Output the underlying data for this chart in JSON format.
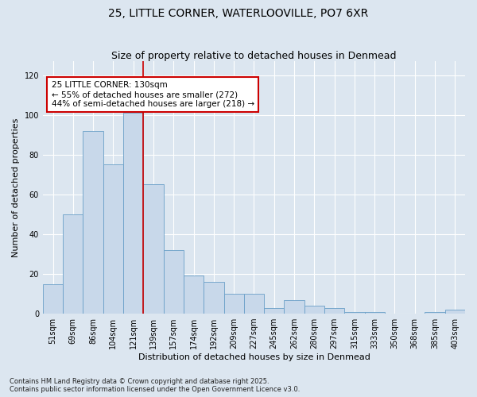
{
  "title": "25, LITTLE CORNER, WATERLOOVILLE, PO7 6XR",
  "subtitle": "Size of property relative to detached houses in Denmead",
  "xlabel": "Distribution of detached houses by size in Denmead",
  "ylabel": "Number of detached properties",
  "footer_line1": "Contains HM Land Registry data © Crown copyright and database right 2025.",
  "footer_line2": "Contains public sector information licensed under the Open Government Licence v3.0.",
  "categories": [
    "51sqm",
    "69sqm",
    "86sqm",
    "104sqm",
    "121sqm",
    "139sqm",
    "157sqm",
    "174sqm",
    "192sqm",
    "209sqm",
    "227sqm",
    "245sqm",
    "262sqm",
    "280sqm",
    "297sqm",
    "315sqm",
    "333sqm",
    "350sqm",
    "368sqm",
    "385sqm",
    "403sqm"
  ],
  "values": [
    15,
    50,
    92,
    75,
    101,
    65,
    32,
    19,
    16,
    10,
    10,
    3,
    7,
    4,
    3,
    1,
    1,
    0,
    0,
    1,
    2
  ],
  "bar_color": "#c8d8ea",
  "bar_edge_color": "#6a9fc8",
  "vline_x_index": 4.5,
  "vline_color": "#cc0000",
  "annotation_text": "25 LITTLE CORNER: 130sqm\n← 55% of detached houses are smaller (272)\n44% of semi-detached houses are larger (218) →",
  "annotation_box_color": "#cc0000",
  "annotation_fontsize": 7.5,
  "ylim": [
    0,
    127
  ],
  "yticks": [
    0,
    20,
    40,
    60,
    80,
    100,
    120
  ],
  "background_color": "#dce6f0",
  "plot_background_color": "#dce6f0",
  "grid_color": "#ffffff",
  "title_fontsize": 10,
  "subtitle_fontsize": 9,
  "xlabel_fontsize": 8,
  "ylabel_fontsize": 8,
  "tick_fontsize": 7,
  "footer_fontsize": 6
}
